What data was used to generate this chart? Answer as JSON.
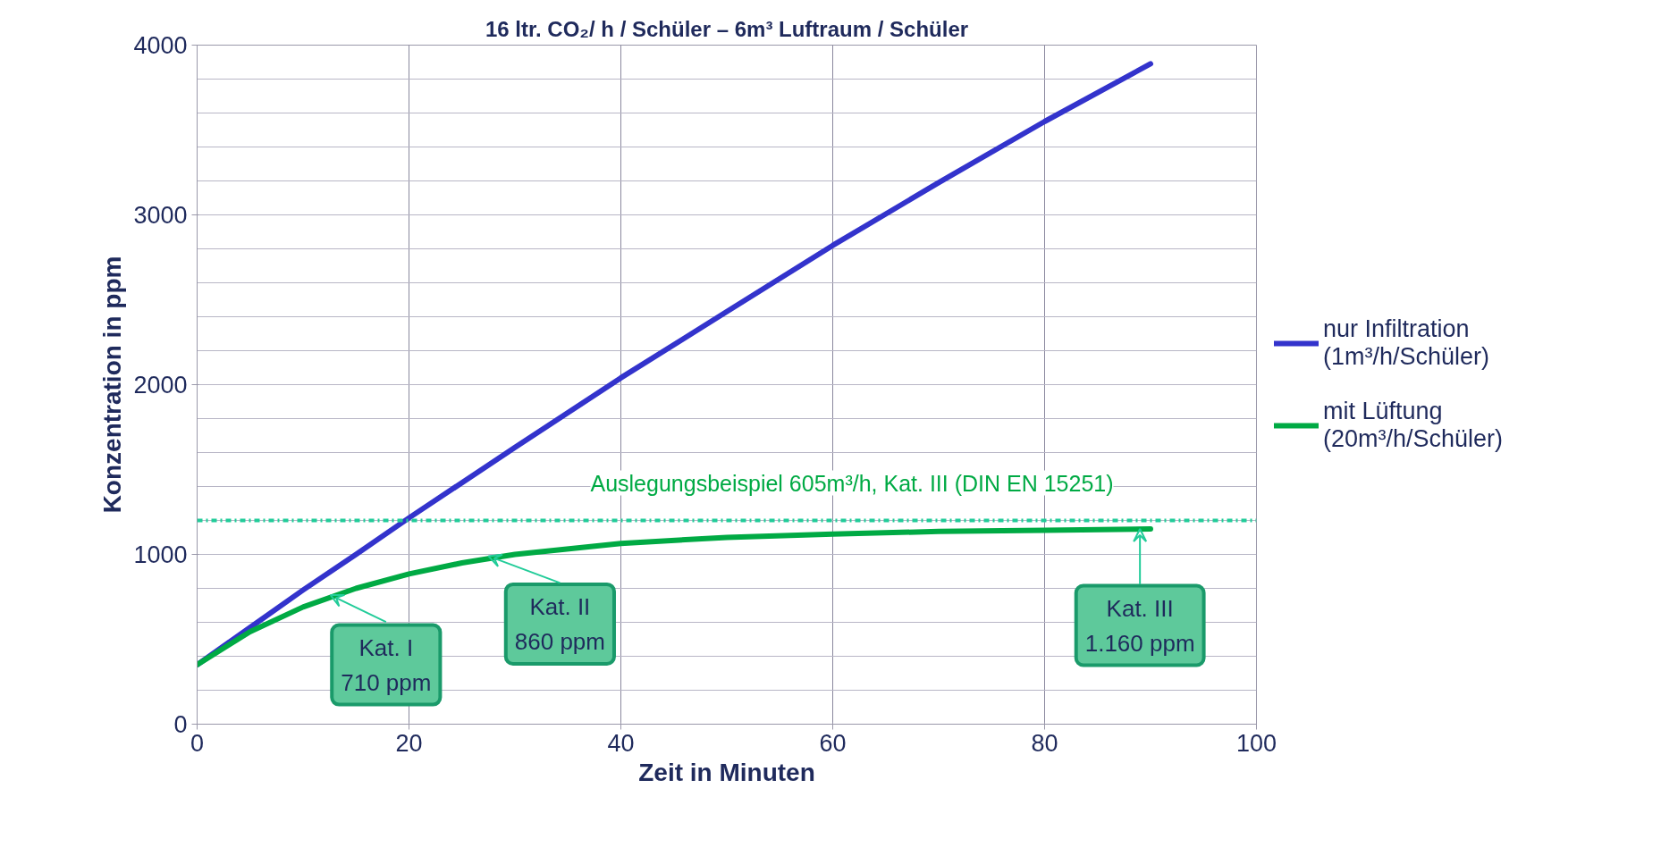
{
  "chart_data": {
    "type": "line",
    "title": "16 ltr. CO₂/ h / Schüler – 6m³ Luftraum / Schüler",
    "xlabel": "Zeit in Minuten",
    "ylabel": "Konzentration in ppm",
    "xlim": [
      0,
      100
    ],
    "xticks": [
      0,
      20,
      40,
      60,
      80,
      100
    ],
    "ylim": [
      0,
      4000
    ],
    "yticks": [
      0,
      1000,
      2000,
      3000,
      4000
    ],
    "grid": true,
    "legend": "right",
    "line_style": "solid",
    "marker": "none",
    "series": [
      {
        "name": "nur Infiltration\n(1m³/h/Schüler)",
        "color": "#3333cc",
        "x": [
          0,
          5,
          10,
          15,
          20,
          30,
          40,
          50,
          60,
          70,
          80,
          90
        ],
        "values": [
          350,
          570,
          790,
          1000,
          1215,
          1630,
          2040,
          2430,
          2820,
          3190,
          3550,
          3890
        ]
      },
      {
        "name": "mit Lüftung\n(20m³/h/Schüler)",
        "color": "#00aa44",
        "x": [
          0,
          5,
          10,
          15,
          20,
          25,
          30,
          40,
          50,
          60,
          70,
          80,
          90
        ],
        "values": [
          350,
          545,
          690,
          800,
          885,
          950,
          1000,
          1065,
          1100,
          1120,
          1135,
          1142,
          1150
        ]
      }
    ],
    "ref_lines": [
      {
        "axis": "y",
        "value": 1200,
        "label": "Auslegungsbeispiel 605m³/h, Kat. III (DIN EN 15251)",
        "color": "#22cc99",
        "line_style": "dashdot"
      }
    ],
    "annotations": [
      {
        "text": "Kat. I\n710 ppm",
        "x": 12.6,
        "y": 760
      },
      {
        "text": "Kat. II\n860 ppm",
        "x": 27.5,
        "y": 990
      },
      {
        "text": "Kat. III\n1.160 ppm",
        "x": 89,
        "y": 1150
      }
    ]
  }
}
